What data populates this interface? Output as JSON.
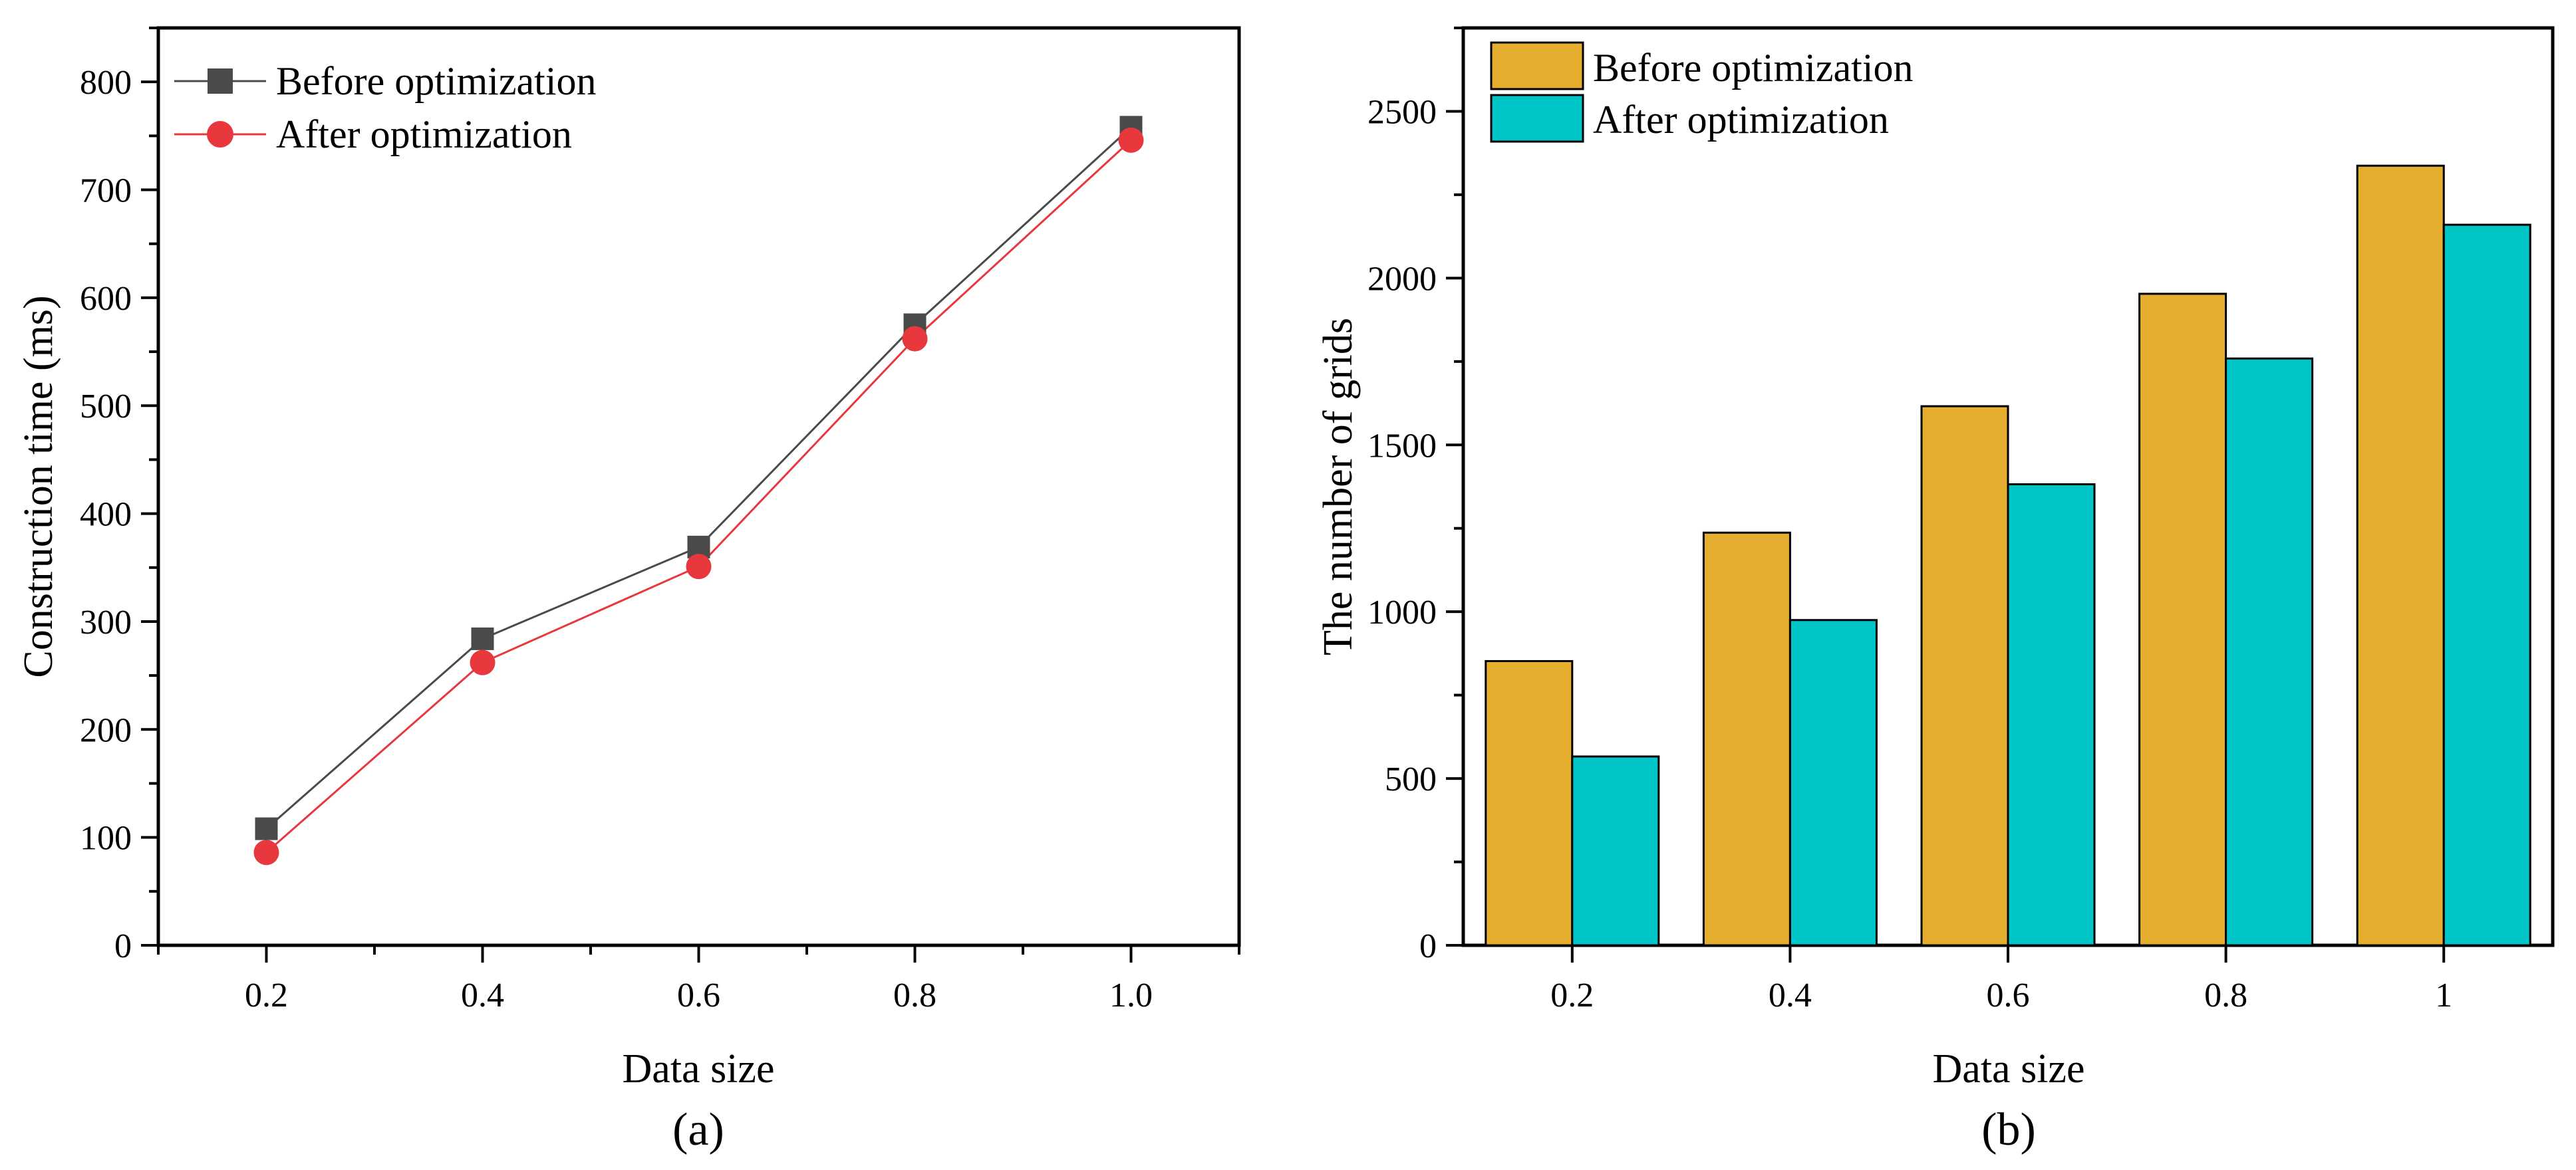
{
  "colors": {
    "before_line": "#4a4a4a",
    "after_line": "#e8383d",
    "before_bar": "#e5ae2f",
    "after_bar": "#00c5c6",
    "axis": "#000000"
  },
  "chart_data": [
    {
      "id": "a",
      "type": "line",
      "panel_label": "(a)",
      "xlabel": "Data size",
      "ylabel": "Construction time (ms)",
      "x": [
        0.2,
        0.4,
        0.6,
        0.8,
        1.0
      ],
      "x_tick_labels": [
        "0.2",
        "0.4",
        "0.6",
        "0.8",
        "1.0"
      ],
      "y_tick_labels": [
        "0",
        "100",
        "200",
        "300",
        "400",
        "500",
        "600",
        "700",
        "800"
      ],
      "xlim": [
        0.1,
        1.1
      ],
      "ylim": [
        0,
        850
      ],
      "grid": false,
      "legend_position": "top-left",
      "series": [
        {
          "name": "Before optimization",
          "marker": "square",
          "values": [
            108,
            284,
            369,
            575,
            758
          ]
        },
        {
          "name": "After optimization",
          "marker": "circle",
          "values": [
            86,
            262,
            351,
            562,
            746
          ]
        }
      ]
    },
    {
      "id": "b",
      "type": "bar",
      "panel_label": "(b)",
      "xlabel": "Data size",
      "ylabel": "The number of grids",
      "categories": [
        "0.2",
        "0.4",
        "0.6",
        "0.8",
        "1"
      ],
      "y_tick_labels": [
        "0",
        "500",
        "1000",
        "1500",
        "2000",
        "2500"
      ],
      "ylim": [
        0,
        2750
      ],
      "grid": false,
      "legend_position": "top-left",
      "series": [
        {
          "name": "Before optimization",
          "values": [
            852,
            1237,
            1616,
            1953,
            2337
          ]
        },
        {
          "name": "After optimization",
          "values": [
            566,
            975,
            1382,
            1759,
            2160
          ]
        }
      ]
    }
  ]
}
